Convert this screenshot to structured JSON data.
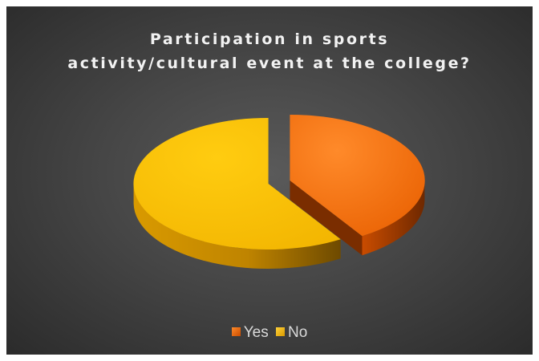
{
  "chart_data": {
    "type": "pie",
    "title_lines": [
      "Participation in sports",
      "activity/cultural event at the college?"
    ],
    "categories": [
      "Yes",
      "No"
    ],
    "values": [
      41,
      59
    ],
    "colors": [
      "#ff7a1a",
      "#ffc000"
    ],
    "style": "3d-exploded",
    "legend_position": "bottom"
  }
}
